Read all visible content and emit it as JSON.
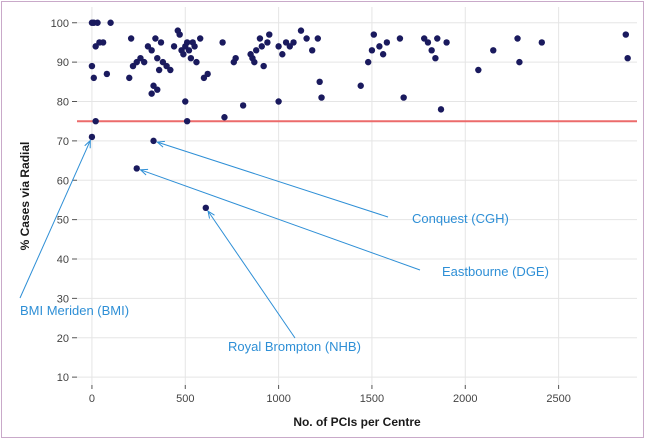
{
  "chart_data": {
    "type": "scatter",
    "title": "",
    "xlabel": "No. of PCIs per Centre",
    "ylabel": "% Cases via Radial",
    "xlim": [
      -80,
      2920
    ],
    "ylim": [
      8,
      104
    ],
    "xticks": [
      0,
      500,
      1000,
      1500,
      2000,
      2500
    ],
    "yticks": [
      10,
      20,
      30,
      40,
      50,
      60,
      70,
      80,
      90,
      100
    ],
    "grid": true,
    "legend": "none",
    "colors": {
      "points": "#1a1a5e",
      "reference_line": "#ec6b6b",
      "annotations": "#2e8fd6",
      "grid": "#e5e5e5"
    },
    "reference_line": {
      "y": 75
    },
    "points": [
      [
        0,
        100
      ],
      [
        10,
        100
      ],
      [
        30,
        100
      ],
      [
        100,
        100
      ],
      [
        0,
        89
      ],
      [
        10,
        86
      ],
      [
        20,
        94
      ],
      [
        40,
        95
      ],
      [
        60,
        95
      ],
      [
        80,
        87
      ],
      [
        200,
        86
      ],
      [
        210,
        96
      ],
      [
        220,
        89
      ],
      [
        240,
        90
      ],
      [
        260,
        91
      ],
      [
        280,
        90
      ],
      [
        300,
        94
      ],
      [
        320,
        93
      ],
      [
        340,
        96
      ],
      [
        350,
        91
      ],
      [
        360,
        88
      ],
      [
        370,
        95
      ],
      [
        380,
        90
      ],
      [
        400,
        89
      ],
      [
        420,
        88
      ],
      [
        440,
        94
      ],
      [
        460,
        98
      ],
      [
        470,
        97
      ],
      [
        480,
        93
      ],
      [
        490,
        92
      ],
      [
        500,
        94
      ],
      [
        510,
        95
      ],
      [
        520,
        93
      ],
      [
        530,
        91
      ],
      [
        540,
        95
      ],
      [
        550,
        94
      ],
      [
        560,
        90
      ],
      [
        580,
        96
      ],
      [
        600,
        86
      ],
      [
        620,
        87
      ],
      [
        700,
        95
      ],
      [
        760,
        90
      ],
      [
        770,
        91
      ],
      [
        850,
        92
      ],
      [
        860,
        91
      ],
      [
        870,
        90
      ],
      [
        880,
        93
      ],
      [
        900,
        96
      ],
      [
        910,
        94
      ],
      [
        920,
        89
      ],
      [
        940,
        95
      ],
      [
        950,
        97
      ],
      [
        1000,
        94
      ],
      [
        1020,
        92
      ],
      [
        1040,
        95
      ],
      [
        1060,
        94
      ],
      [
        1080,
        95
      ],
      [
        1120,
        98
      ],
      [
        1150,
        96
      ],
      [
        1180,
        93
      ],
      [
        1210,
        96
      ],
      [
        1220,
        85
      ],
      [
        1230,
        81
      ],
      [
        1440,
        84
      ],
      [
        1480,
        90
      ],
      [
        1500,
        93
      ],
      [
        1510,
        97
      ],
      [
        1540,
        94
      ],
      [
        1560,
        92
      ],
      [
        1580,
        95
      ],
      [
        1650,
        96
      ],
      [
        1670,
        81
      ],
      [
        1780,
        96
      ],
      [
        1800,
        95
      ],
      [
        1820,
        93
      ],
      [
        1840,
        91
      ],
      [
        1850,
        96
      ],
      [
        1870,
        78
      ],
      [
        1900,
        95
      ],
      [
        2070,
        88
      ],
      [
        2150,
        93
      ],
      [
        2280,
        96
      ],
      [
        2290,
        90
      ],
      [
        2410,
        95
      ],
      [
        2860,
        97
      ],
      [
        2870,
        91
      ],
      [
        20,
        75
      ],
      [
        500,
        80
      ],
      [
        510,
        75
      ],
      [
        810,
        79
      ],
      [
        1000,
        80
      ],
      [
        710,
        76
      ],
      [
        330,
        84
      ],
      [
        350,
        83
      ],
      [
        320,
        82
      ],
      [
        0,
        71
      ],
      [
        330,
        70
      ],
      [
        240,
        63
      ],
      [
        610,
        53
      ]
    ],
    "annotations": [
      {
        "label": "BMI Meriden (BMI)",
        "point": [
          0,
          71
        ]
      },
      {
        "label": "Royal Brompton (NHB)",
        "point": [
          610,
          53
        ]
      },
      {
        "label": "Conquest (CGH)",
        "point": [
          330,
          70
        ]
      },
      {
        "label": "Eastbourne (DGE)",
        "point": [
          240,
          63
        ]
      }
    ]
  }
}
